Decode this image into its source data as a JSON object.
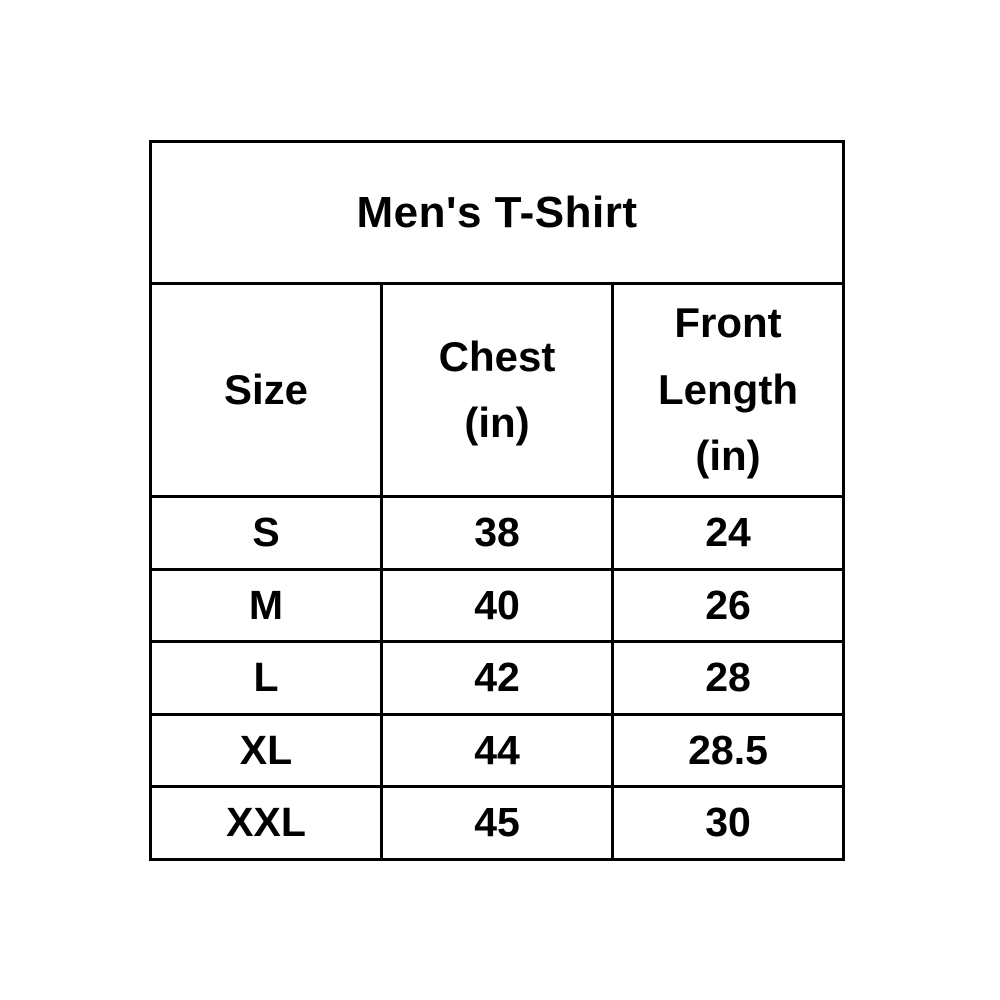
{
  "chart_data": {
    "type": "table",
    "title": "Men's T-Shirt",
    "columns": [
      "Size",
      "Chest (in)",
      "Front Length (in)"
    ],
    "columns_display": [
      "Size",
      "Chest\n(in)",
      "Front\nLength\n(in)"
    ],
    "rows": [
      [
        "S",
        "38",
        "24"
      ],
      [
        "M",
        "40",
        "26"
      ],
      [
        "L",
        "42",
        "28"
      ],
      [
        "XL",
        "44",
        "28.5"
      ],
      [
        "XXL",
        "45",
        "30"
      ]
    ],
    "units": "inches",
    "layout": "title row spans all 3 columns; header row below; 5 size rows; all cells bold, centered, black 3px grid on white"
  },
  "colors": {
    "border": "#000000",
    "text": "#000000",
    "background": "#ffffff"
  }
}
